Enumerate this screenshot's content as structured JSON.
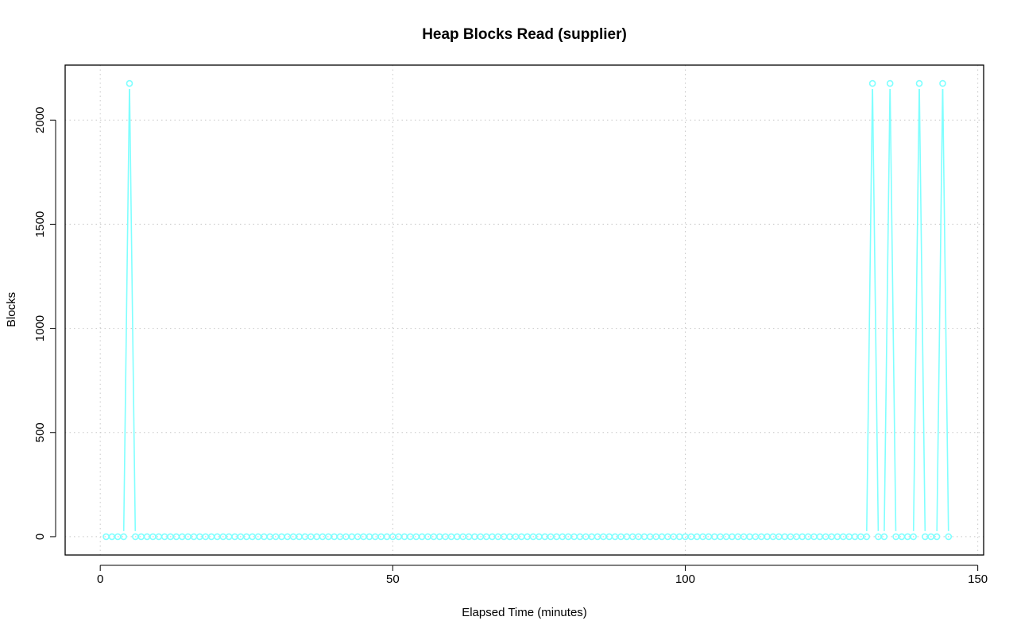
{
  "chart_data": {
    "type": "line",
    "title": "Heap Blocks Read (supplier)",
    "xlabel": "Elapsed Time (minutes)",
    "ylabel": "Blocks",
    "xlim": [
      -6,
      151
    ],
    "ylim": [
      -88,
      2264
    ],
    "x_ticks": [
      0,
      50,
      100,
      150
    ],
    "y_ticks": [
      0,
      500,
      1000,
      1500,
      2000
    ],
    "x_tick_labels": [
      "0",
      "50",
      "100",
      "150"
    ],
    "y_tick_labels": [
      "0",
      "500",
      "1000",
      "1500",
      "2000"
    ],
    "grid": true,
    "line_style": "both (points and lines)",
    "color": "#80ffff",
    "series": [
      {
        "x": [
          1,
          2,
          3,
          4,
          5,
          6,
          7,
          8,
          9,
          10,
          11,
          12,
          13,
          14,
          15,
          16,
          17,
          18,
          19,
          20,
          21,
          22,
          23,
          24,
          25,
          26,
          27,
          28,
          29,
          30,
          31,
          32,
          33,
          34,
          35,
          36,
          37,
          38,
          39,
          40,
          41,
          42,
          43,
          44,
          45,
          46,
          47,
          48,
          49,
          50,
          51,
          52,
          53,
          54,
          55,
          56,
          57,
          58,
          59,
          60,
          61,
          62,
          63,
          64,
          65,
          66,
          67,
          68,
          69,
          70,
          71,
          72,
          73,
          74,
          75,
          76,
          77,
          78,
          79,
          80,
          81,
          82,
          83,
          84,
          85,
          86,
          87,
          88,
          89,
          90,
          91,
          92,
          93,
          94,
          95,
          96,
          97,
          98,
          99,
          100,
          101,
          102,
          103,
          104,
          105,
          106,
          107,
          108,
          109,
          110,
          111,
          112,
          113,
          114,
          115,
          116,
          117,
          118,
          119,
          120,
          121,
          122,
          123,
          124,
          125,
          126,
          127,
          128,
          129,
          130,
          131,
          132,
          133,
          134,
          135,
          136,
          137,
          138,
          139,
          140,
          141,
          142,
          143,
          144,
          145
        ],
        "y": [
          0,
          0,
          0,
          0,
          2176,
          0,
          0,
          0,
          0,
          0,
          0,
          0,
          0,
          0,
          0,
          0,
          0,
          0,
          0,
          0,
          0,
          0,
          0,
          0,
          0,
          0,
          0,
          0,
          0,
          0,
          0,
          0,
          0,
          0,
          0,
          0,
          0,
          0,
          0,
          0,
          0,
          0,
          0,
          0,
          0,
          0,
          0,
          0,
          0,
          0,
          0,
          0,
          0,
          0,
          0,
          0,
          0,
          0,
          0,
          0,
          0,
          0,
          0,
          0,
          0,
          0,
          0,
          0,
          0,
          0,
          0,
          0,
          0,
          0,
          0,
          0,
          0,
          0,
          0,
          0,
          0,
          0,
          0,
          0,
          0,
          0,
          0,
          0,
          0,
          0,
          0,
          0,
          0,
          0,
          0,
          0,
          0,
          0,
          0,
          0,
          0,
          0,
          0,
          0,
          0,
          0,
          0,
          0,
          0,
          0,
          0,
          0,
          0,
          0,
          0,
          0,
          0,
          0,
          0,
          0,
          0,
          0,
          0,
          0,
          0,
          0,
          0,
          0,
          0,
          0,
          0,
          2176,
          0,
          0,
          2176,
          0,
          0,
          0,
          0,
          2176,
          0,
          0,
          0,
          2176,
          0
        ]
      }
    ]
  }
}
